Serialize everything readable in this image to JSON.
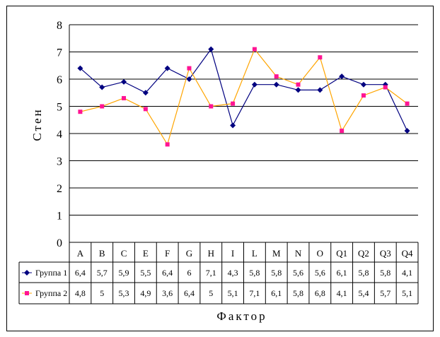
{
  "chart_data": {
    "type": "line",
    "title": "",
    "xlabel": "Фактор",
    "ylabel": "Стен",
    "ylim": [
      0,
      8
    ],
    "yticks": [
      "0",
      "1",
      "2",
      "3",
      "4",
      "5",
      "6",
      "7",
      "8"
    ],
    "grid": "horizontal",
    "legend": "data-table",
    "categories": [
      "A",
      "B",
      "C",
      "E",
      "F",
      "G",
      "H",
      "I",
      "L",
      "M",
      "N",
      "O",
      "Q1",
      "Q2",
      "Q3",
      "Q4"
    ],
    "series": [
      {
        "name": "Группа 1",
        "color": "#000080",
        "marker": "diamond",
        "values": [
          6.4,
          5.7,
          5.9,
          5.5,
          6.4,
          6,
          7.1,
          4.3,
          5.8,
          5.8,
          5.6,
          5.6,
          6.1,
          5.8,
          5.8,
          4.1
        ],
        "labels": [
          "6,4",
          "5,7",
          "5,9",
          "5,5",
          "6,4",
          "6",
          "7,1",
          "4,3",
          "5,8",
          "5,8",
          "5,6",
          "5,6",
          "6,1",
          "5,8",
          "5,8",
          "4,1"
        ]
      },
      {
        "name": "Группа 2",
        "color": "#FFA500",
        "marker_color": "#FF1493",
        "marker": "square",
        "values": [
          4.8,
          5,
          5.3,
          4.9,
          3.6,
          6.4,
          5,
          5.1,
          7.1,
          6.1,
          5.8,
          6.8,
          4.1,
          5.4,
          5.7,
          5.1
        ],
        "labels": [
          "4,8",
          "5",
          "5,3",
          "4,9",
          "3,6",
          "6,4",
          "5",
          "5,1",
          "7,1",
          "6,1",
          "5,8",
          "6,8",
          "4,1",
          "5,4",
          "5,7",
          "5,1"
        ]
      }
    ]
  }
}
